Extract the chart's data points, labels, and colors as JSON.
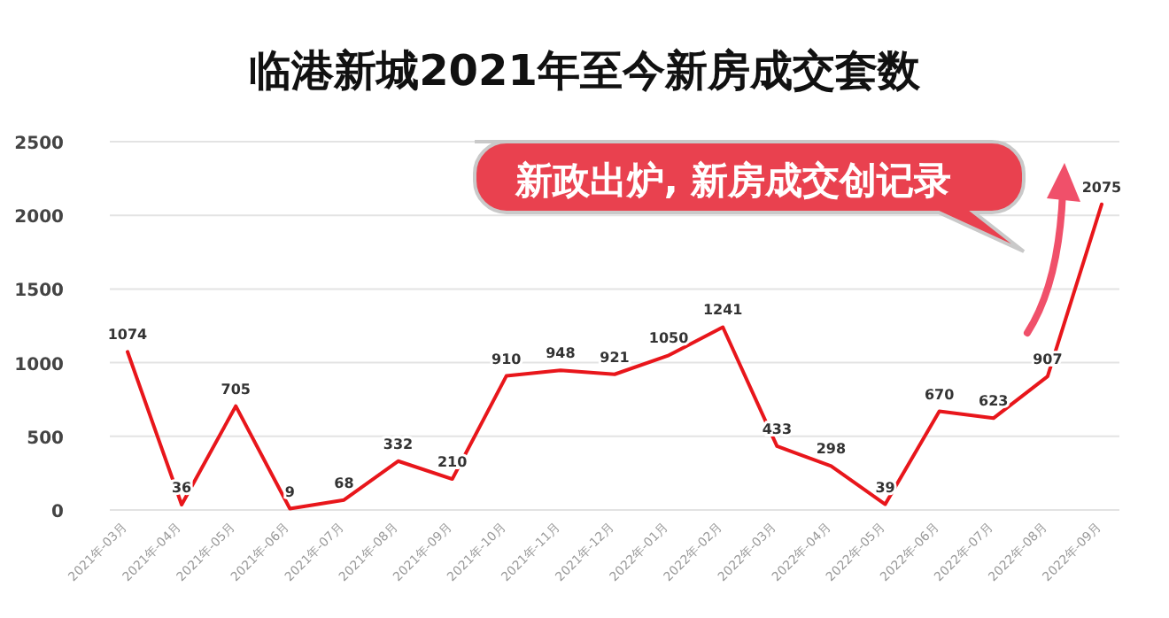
{
  "chart_data": {
    "type": "line",
    "title": "临港新城2021年至今新房成交套数",
    "categories": [
      "2021年-03月",
      "2021年-04月",
      "2021年-05月",
      "2021年-06月",
      "2021年-07月",
      "2021年-08月",
      "2021年-09月",
      "2021年-10月",
      "2021年-11月",
      "2021年-12月",
      "2022年-01月",
      "2022年-02月",
      "2022年-03月",
      "2022年-04月",
      "2022年-05月",
      "2022年-06月",
      "2022年-07月",
      "2022年-08月",
      "2022年-09月"
    ],
    "series": [
      {
        "color": "#e8161b",
        "values": [
          1074,
          36,
          705,
          9,
          68,
          332,
          210,
          910,
          948,
          921,
          1050,
          1241,
          433,
          298,
          39,
          670,
          623,
          907,
          2075
        ]
      }
    ],
    "ylim": [
      0,
      2500
    ],
    "yticks": [
      0,
      500,
      1000,
      1500,
      2000,
      2500
    ],
    "grid": "y",
    "data_labels": true,
    "marker": "none",
    "line_style": "solid",
    "annotations": [
      "新政出炉, 新房成交创记录"
    ]
  }
}
